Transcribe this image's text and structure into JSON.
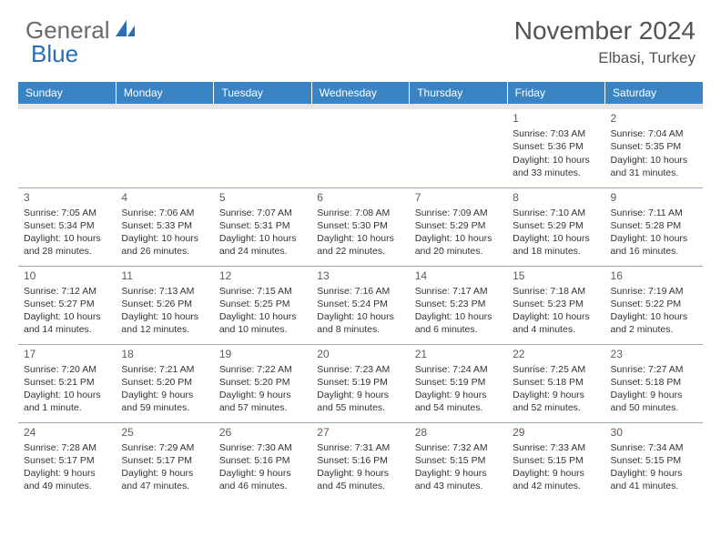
{
  "brand": {
    "part1": "General",
    "part2": "Blue"
  },
  "title": "November 2024",
  "location": "Elbasi, Turkey",
  "colors": {
    "header_bg": "#3b84c4",
    "header_text": "#ffffff",
    "spacer_bg": "#e5e5e5",
    "border": "#9aa9b5",
    "title_color": "#535353",
    "body_text": "#333333"
  },
  "weekdays": [
    "Sunday",
    "Monday",
    "Tuesday",
    "Wednesday",
    "Thursday",
    "Friday",
    "Saturday"
  ],
  "weeks": [
    [
      {
        "day": "",
        "lines": [
          "",
          "",
          "",
          ""
        ]
      },
      {
        "day": "",
        "lines": [
          "",
          "",
          "",
          ""
        ]
      },
      {
        "day": "",
        "lines": [
          "",
          "",
          "",
          ""
        ]
      },
      {
        "day": "",
        "lines": [
          "",
          "",
          "",
          ""
        ]
      },
      {
        "day": "",
        "lines": [
          "",
          "",
          "",
          ""
        ]
      },
      {
        "day": "1",
        "lines": [
          "Sunrise: 7:03 AM",
          "Sunset: 5:36 PM",
          "Daylight: 10 hours",
          "and 33 minutes."
        ]
      },
      {
        "day": "2",
        "lines": [
          "Sunrise: 7:04 AM",
          "Sunset: 5:35 PM",
          "Daylight: 10 hours",
          "and 31 minutes."
        ]
      }
    ],
    [
      {
        "day": "3",
        "lines": [
          "Sunrise: 7:05 AM",
          "Sunset: 5:34 PM",
          "Daylight: 10 hours",
          "and 28 minutes."
        ]
      },
      {
        "day": "4",
        "lines": [
          "Sunrise: 7:06 AM",
          "Sunset: 5:33 PM",
          "Daylight: 10 hours",
          "and 26 minutes."
        ]
      },
      {
        "day": "5",
        "lines": [
          "Sunrise: 7:07 AM",
          "Sunset: 5:31 PM",
          "Daylight: 10 hours",
          "and 24 minutes."
        ]
      },
      {
        "day": "6",
        "lines": [
          "Sunrise: 7:08 AM",
          "Sunset: 5:30 PM",
          "Daylight: 10 hours",
          "and 22 minutes."
        ]
      },
      {
        "day": "7",
        "lines": [
          "Sunrise: 7:09 AM",
          "Sunset: 5:29 PM",
          "Daylight: 10 hours",
          "and 20 minutes."
        ]
      },
      {
        "day": "8",
        "lines": [
          "Sunrise: 7:10 AM",
          "Sunset: 5:29 PM",
          "Daylight: 10 hours",
          "and 18 minutes."
        ]
      },
      {
        "day": "9",
        "lines": [
          "Sunrise: 7:11 AM",
          "Sunset: 5:28 PM",
          "Daylight: 10 hours",
          "and 16 minutes."
        ]
      }
    ],
    [
      {
        "day": "10",
        "lines": [
          "Sunrise: 7:12 AM",
          "Sunset: 5:27 PM",
          "Daylight: 10 hours",
          "and 14 minutes."
        ]
      },
      {
        "day": "11",
        "lines": [
          "Sunrise: 7:13 AM",
          "Sunset: 5:26 PM",
          "Daylight: 10 hours",
          "and 12 minutes."
        ]
      },
      {
        "day": "12",
        "lines": [
          "Sunrise: 7:15 AM",
          "Sunset: 5:25 PM",
          "Daylight: 10 hours",
          "and 10 minutes."
        ]
      },
      {
        "day": "13",
        "lines": [
          "Sunrise: 7:16 AM",
          "Sunset: 5:24 PM",
          "Daylight: 10 hours",
          "and 8 minutes."
        ]
      },
      {
        "day": "14",
        "lines": [
          "Sunrise: 7:17 AM",
          "Sunset: 5:23 PM",
          "Daylight: 10 hours",
          "and 6 minutes."
        ]
      },
      {
        "day": "15",
        "lines": [
          "Sunrise: 7:18 AM",
          "Sunset: 5:23 PM",
          "Daylight: 10 hours",
          "and 4 minutes."
        ]
      },
      {
        "day": "16",
        "lines": [
          "Sunrise: 7:19 AM",
          "Sunset: 5:22 PM",
          "Daylight: 10 hours",
          "and 2 minutes."
        ]
      }
    ],
    [
      {
        "day": "17",
        "lines": [
          "Sunrise: 7:20 AM",
          "Sunset: 5:21 PM",
          "Daylight: 10 hours",
          "and 1 minute."
        ]
      },
      {
        "day": "18",
        "lines": [
          "Sunrise: 7:21 AM",
          "Sunset: 5:20 PM",
          "Daylight: 9 hours",
          "and 59 minutes."
        ]
      },
      {
        "day": "19",
        "lines": [
          "Sunrise: 7:22 AM",
          "Sunset: 5:20 PM",
          "Daylight: 9 hours",
          "and 57 minutes."
        ]
      },
      {
        "day": "20",
        "lines": [
          "Sunrise: 7:23 AM",
          "Sunset: 5:19 PM",
          "Daylight: 9 hours",
          "and 55 minutes."
        ]
      },
      {
        "day": "21",
        "lines": [
          "Sunrise: 7:24 AM",
          "Sunset: 5:19 PM",
          "Daylight: 9 hours",
          "and 54 minutes."
        ]
      },
      {
        "day": "22",
        "lines": [
          "Sunrise: 7:25 AM",
          "Sunset: 5:18 PM",
          "Daylight: 9 hours",
          "and 52 minutes."
        ]
      },
      {
        "day": "23",
        "lines": [
          "Sunrise: 7:27 AM",
          "Sunset: 5:18 PM",
          "Daylight: 9 hours",
          "and 50 minutes."
        ]
      }
    ],
    [
      {
        "day": "24",
        "lines": [
          "Sunrise: 7:28 AM",
          "Sunset: 5:17 PM",
          "Daylight: 9 hours",
          "and 49 minutes."
        ]
      },
      {
        "day": "25",
        "lines": [
          "Sunrise: 7:29 AM",
          "Sunset: 5:17 PM",
          "Daylight: 9 hours",
          "and 47 minutes."
        ]
      },
      {
        "day": "26",
        "lines": [
          "Sunrise: 7:30 AM",
          "Sunset: 5:16 PM",
          "Daylight: 9 hours",
          "and 46 minutes."
        ]
      },
      {
        "day": "27",
        "lines": [
          "Sunrise: 7:31 AM",
          "Sunset: 5:16 PM",
          "Daylight: 9 hours",
          "and 45 minutes."
        ]
      },
      {
        "day": "28",
        "lines": [
          "Sunrise: 7:32 AM",
          "Sunset: 5:15 PM",
          "Daylight: 9 hours",
          "and 43 minutes."
        ]
      },
      {
        "day": "29",
        "lines": [
          "Sunrise: 7:33 AM",
          "Sunset: 5:15 PM",
          "Daylight: 9 hours",
          "and 42 minutes."
        ]
      },
      {
        "day": "30",
        "lines": [
          "Sunrise: 7:34 AM",
          "Sunset: 5:15 PM",
          "Daylight: 9 hours",
          "and 41 minutes."
        ]
      }
    ]
  ]
}
